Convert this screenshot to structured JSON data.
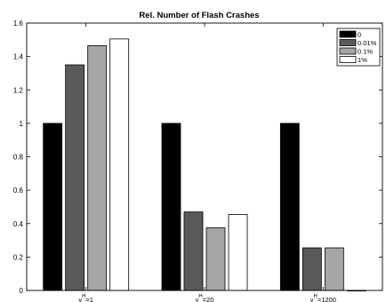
{
  "chart_data": {
    "type": "bar",
    "title": "Rel. Number of Flash Crashes",
    "xlabel": "",
    "ylabel": "",
    "ylim": [
      0,
      1.6
    ],
    "yticks": [
      "0",
      "0.2",
      "0.4",
      "0.6",
      "0.8",
      "1",
      "1.2",
      "1.4",
      "1.6"
    ],
    "categories": [
      {
        "sym": "γ",
        "sup": "H",
        "rest": "=1"
      },
      {
        "sym": "γ",
        "sup": "H",
        "rest": "=20"
      },
      {
        "sym": "γ",
        "sup": "H",
        "rest": "=1200"
      }
    ],
    "series": [
      {
        "name": "0",
        "color": "#000000",
        "values": [
          1.0,
          1.0,
          1.0
        ]
      },
      {
        "name": "0.01%",
        "color": "#5a5a5a",
        "values": [
          1.35,
          0.47,
          0.255
        ]
      },
      {
        "name": "0.1%",
        "color": "#a6a6a6",
        "values": [
          1.465,
          0.375,
          0.255
        ]
      },
      {
        "name": "1%",
        "color": "#ffffff",
        "values": [
          1.505,
          0.455,
          0.0
        ]
      }
    ],
    "legend_position": "top-right",
    "grid": false
  }
}
